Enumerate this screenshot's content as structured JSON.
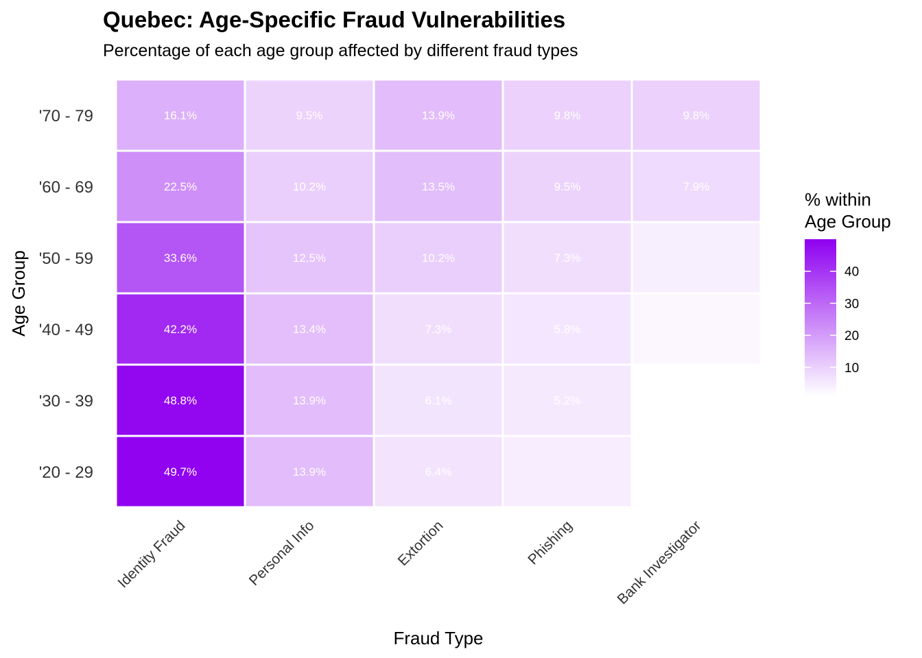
{
  "chart_data": {
    "type": "heatmap",
    "title": "Quebec: Age-Specific Fraud Vulnerabilities",
    "subtitle": "Percentage of each age group affected by different fraud types",
    "xlabel": "Fraud Type",
    "ylabel": "Age Group",
    "x_categories": [
      "Identity Fraud",
      "Personal Info",
      "Extortion",
      "Phishing",
      "Bank Investigator"
    ],
    "y_categories": [
      "'70 - 79",
      "'60 - 69",
      "'50 - 59",
      "'40 - 49",
      "'30 - 39",
      "'20 - 29"
    ],
    "values": [
      [
        16.1,
        9.5,
        13.9,
        9.8,
        9.8
      ],
      [
        22.5,
        10.2,
        13.5,
        9.5,
        7.9
      ],
      [
        33.6,
        12.5,
        10.2,
        7.3,
        4.0
      ],
      [
        42.2,
        13.4,
        7.3,
        5.8,
        2.5
      ],
      [
        48.8,
        13.9,
        6.1,
        5.2,
        1.0
      ],
      [
        49.7,
        13.9,
        6.4,
        4.5,
        null
      ]
    ],
    "labels": [
      [
        "16.1%",
        "9.5%",
        "13.9%",
        "9.8%",
        "9.8%"
      ],
      [
        "22.5%",
        "10.2%",
        "13.5%",
        "9.5%",
        "7.9%"
      ],
      [
        "33.6%",
        "12.5%",
        "10.2%",
        "7.3%",
        ""
      ],
      [
        "42.2%",
        "13.4%",
        "7.3%",
        "5.8%",
        ""
      ],
      [
        "48.8%",
        "13.9%",
        "6.1%",
        "5.2%",
        ""
      ],
      [
        "49.7%",
        "13.9%",
        "6.4%",
        "",
        ""
      ]
    ],
    "color_range": [
      1,
      50
    ],
    "low_color": "#ffffff",
    "high_color": "#8f00f0",
    "legend": {
      "title_lines": [
        "% within",
        "Age Group"
      ],
      "ticks": [
        10,
        20,
        30,
        40
      ],
      "placement": "right"
    },
    "grid": false
  }
}
